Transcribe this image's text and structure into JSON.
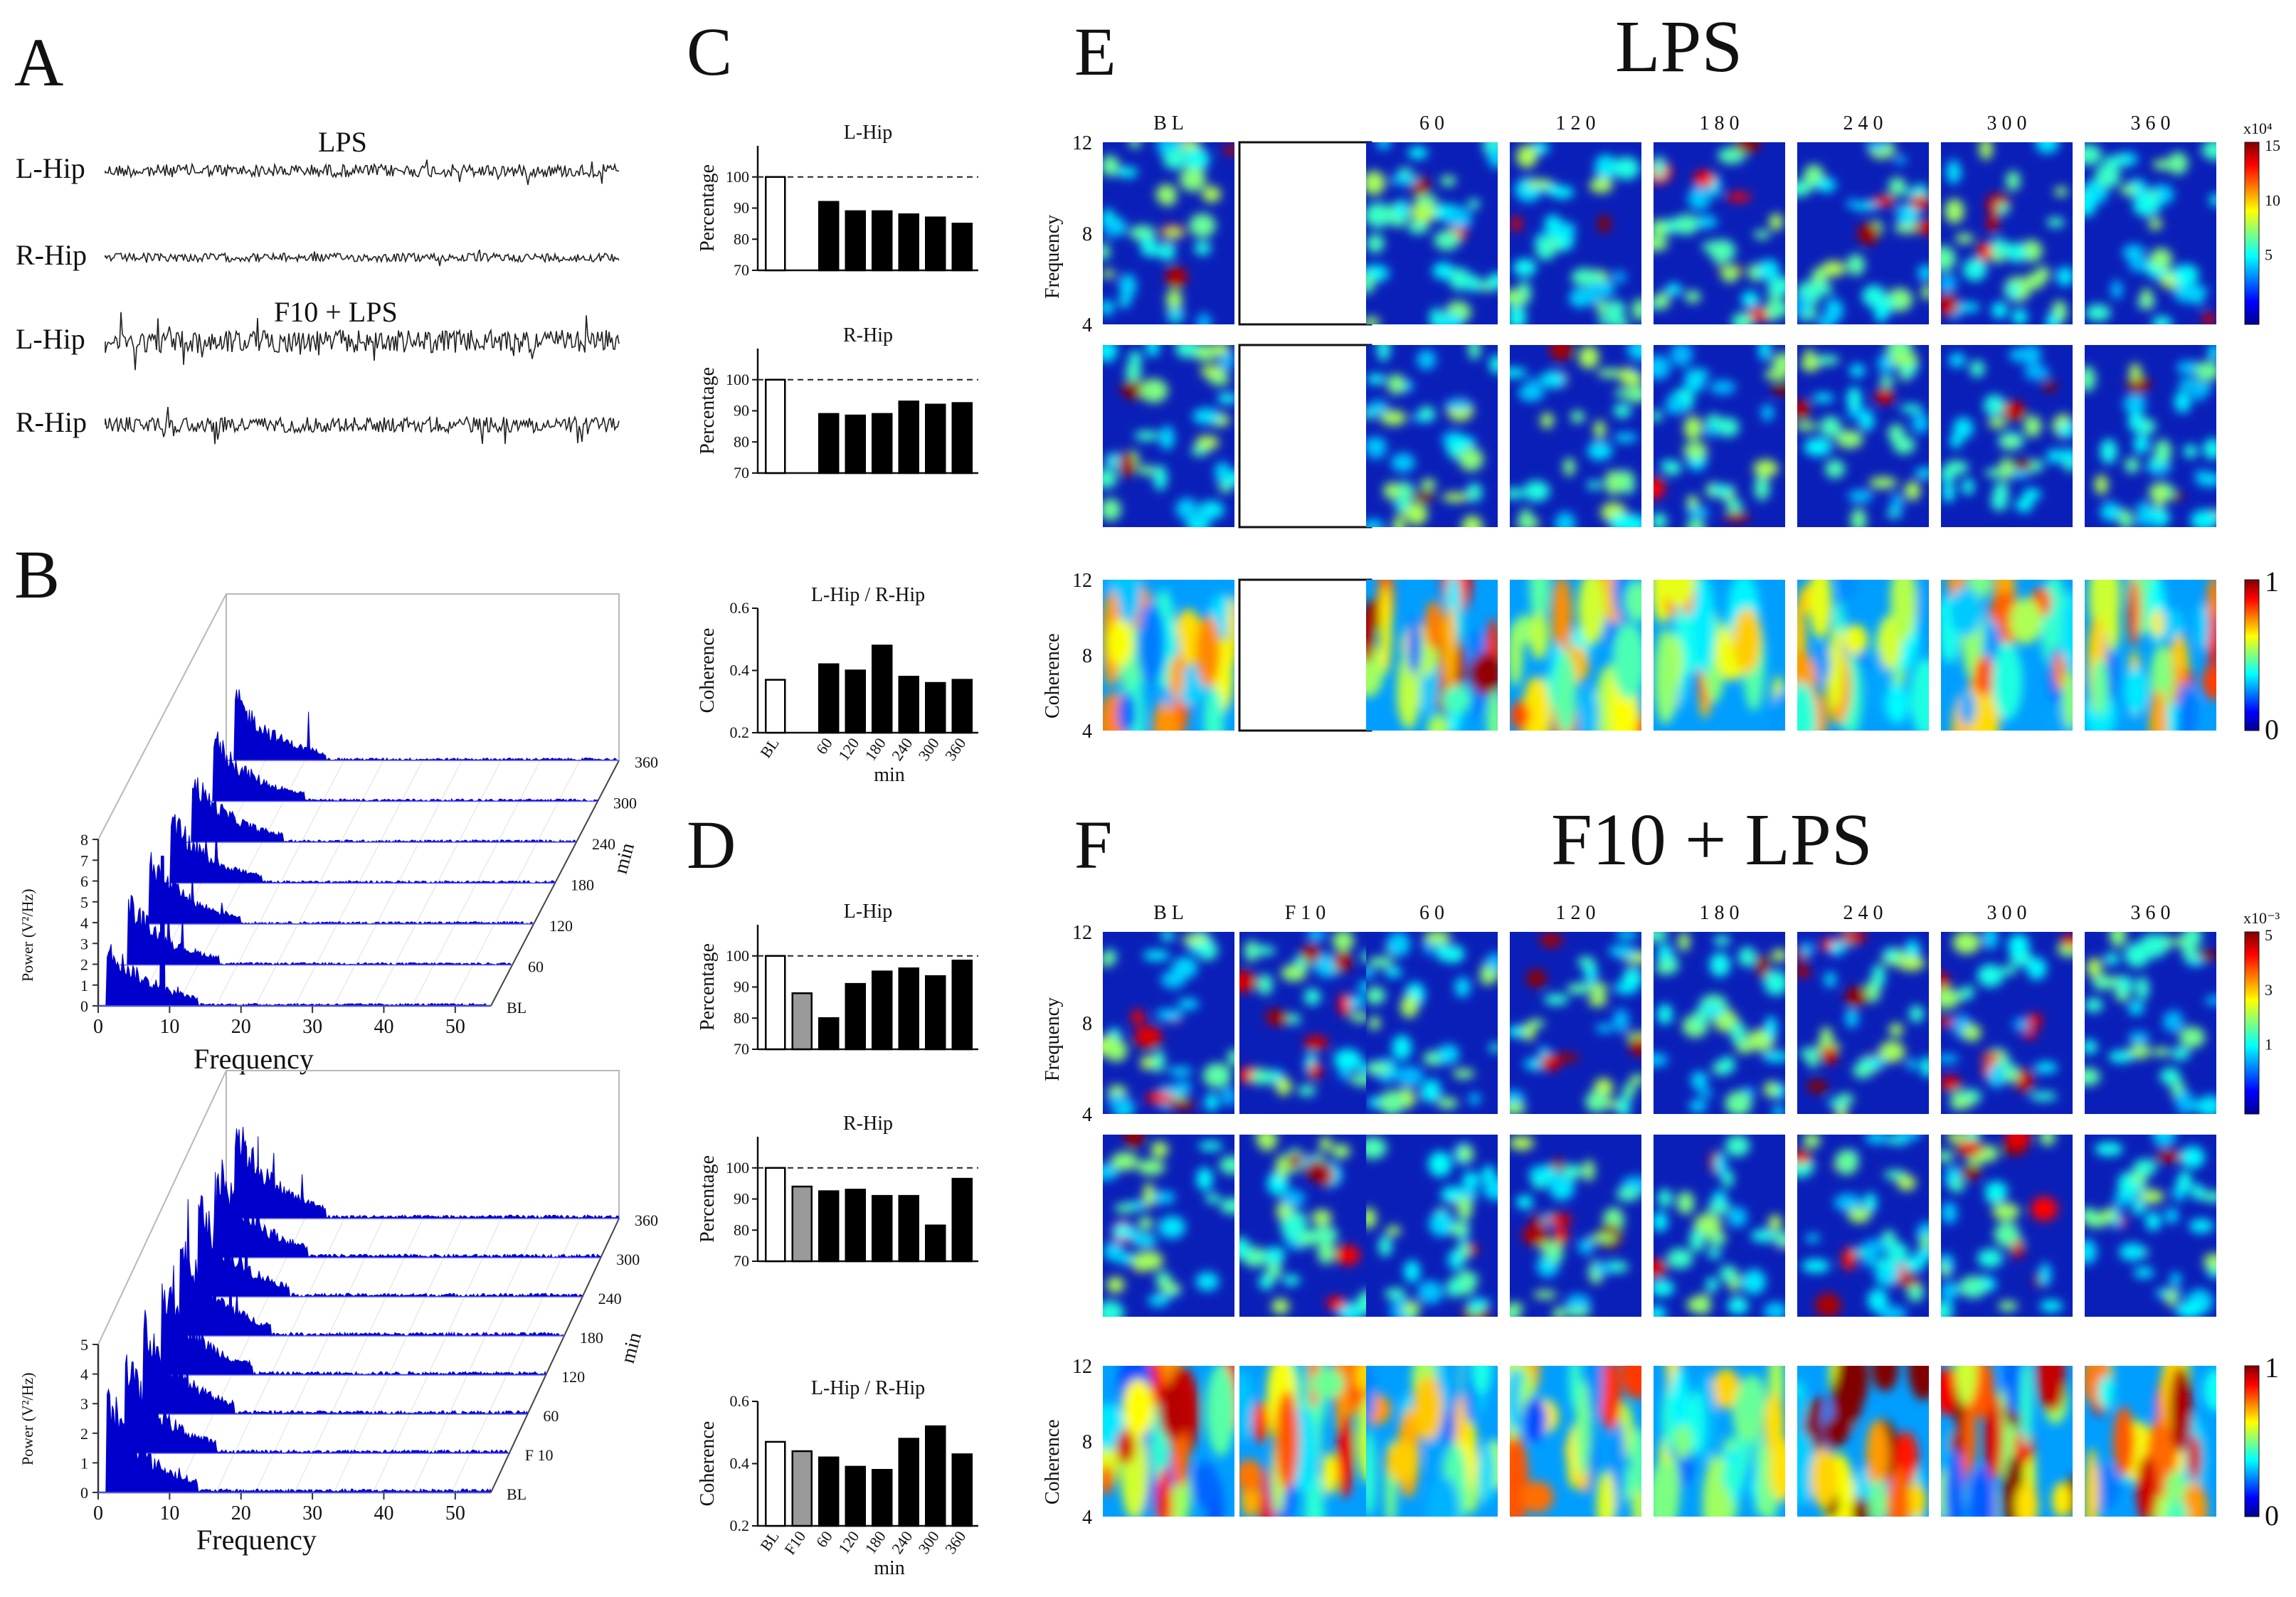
{
  "panels": {
    "a": "A",
    "b": "B",
    "c": "C",
    "d": "D",
    "e": "E",
    "f": "F"
  },
  "panel_a": {
    "cond1": "LPS",
    "cond2": "F10 + LPS",
    "row_labels": [
      "L-Hip",
      "R-Hip",
      "L-Hip",
      "R-Hip"
    ]
  },
  "panel_b": {
    "xlabel": "Frequency",
    "zlabel": "min",
    "xticks": [
      "0",
      "10",
      "20",
      "30",
      "40",
      "50"
    ],
    "top": {
      "ylabel": "Power (V²/Hz)",
      "yticks": [
        "0",
        "1",
        "2",
        "3",
        "4",
        "5",
        "6",
        "7",
        "8"
      ],
      "time_labels": [
        "BL",
        "60",
        "120",
        "180",
        "240",
        "300",
        "360"
      ]
    },
    "bottom": {
      "ylabel": "Power (V²/Hz)",
      "yticks": [
        "0",
        "1",
        "2",
        "3",
        "4",
        "5"
      ],
      "time_labels": [
        "BL",
        "F 10",
        "60",
        "120",
        "180",
        "240",
        "300",
        "360"
      ]
    }
  },
  "panel_e": {
    "title": "LPS",
    "cols": [
      "B L",
      "",
      "6 0",
      "1 2 0",
      "1 8 0",
      "2 4 0",
      "3 0 0",
      "3 6 0"
    ],
    "ylabel_freq": "Frequency",
    "ylabel_coh": "Coherence",
    "yticks": [
      "12",
      "8",
      "4"
    ],
    "cbar1": {
      "exp": "x10⁴",
      "ticks": [
        "15",
        "10",
        "5"
      ]
    },
    "cbar2": {
      "ticks": [
        "1",
        "0"
      ]
    }
  },
  "panel_f": {
    "title": "F10 + LPS",
    "cols": [
      "B L",
      "F 1 0",
      "6 0",
      "1 2 0",
      "1 8 0",
      "2 4 0",
      "3 0 0",
      "3 6 0"
    ],
    "ylabel_freq": "Frequency",
    "ylabel_coh": "Coherence",
    "yticks": [
      "12",
      "8",
      "4"
    ],
    "cbar1": {
      "exp": "x10⁻³",
      "ticks": [
        "5",
        "3",
        "1"
      ]
    },
    "cbar2": {
      "ticks": [
        "1",
        "0"
      ]
    }
  },
  "chart_data": [
    {
      "id": "C1",
      "type": "bar",
      "title": "L-Hip",
      "ylabel": "Percentage",
      "ylim": [
        70,
        110
      ],
      "yticks": [
        "70",
        "80",
        "90",
        "100"
      ],
      "reference_line": 100,
      "categories": [
        "BL",
        "",
        "60",
        "120",
        "180",
        "240",
        "300",
        "360"
      ],
      "values": [
        100,
        null,
        92,
        89,
        89,
        88,
        87,
        85
      ],
      "styles": [
        "open",
        "gap",
        "black",
        "black",
        "black",
        "black",
        "black",
        "black"
      ]
    },
    {
      "id": "C2",
      "type": "bar",
      "title": "R-Hip",
      "ylabel": "Percentage",
      "ylim": [
        70,
        110
      ],
      "yticks": [
        "70",
        "80",
        "90",
        "100"
      ],
      "reference_line": 100,
      "categories": [
        "BL",
        "",
        "60",
        "120",
        "180",
        "240",
        "300",
        "360"
      ],
      "values": [
        100,
        null,
        89,
        88.5,
        89,
        93,
        92,
        92.5
      ],
      "styles": [
        "open",
        "gap",
        "black",
        "black",
        "black",
        "black",
        "black",
        "black"
      ]
    },
    {
      "id": "C3",
      "type": "bar",
      "title": "L-Hip / R-Hip",
      "ylabel": "Coherence",
      "xlabel": "min",
      "ylim": [
        0.2,
        0.6
      ],
      "yticks": [
        "0.2",
        "0.4",
        "0.6"
      ],
      "categories": [
        "BL",
        "",
        "60",
        "120",
        "180",
        "240",
        "300",
        "360"
      ],
      "values": [
        0.37,
        null,
        0.42,
        0.4,
        0.48,
        0.38,
        0.36,
        0.37
      ],
      "styles": [
        "open",
        "gap",
        "black",
        "black",
        "black",
        "black",
        "black",
        "black"
      ],
      "show_xticks": true
    },
    {
      "id": "D1",
      "type": "bar",
      "title": "L-Hip",
      "ylabel": "Percentage",
      "ylim": [
        70,
        110
      ],
      "yticks": [
        "70",
        "80",
        "90",
        "100"
      ],
      "reference_line": 100,
      "categories": [
        "BL",
        "F10",
        "60",
        "120",
        "180",
        "240",
        "300",
        "360"
      ],
      "values": [
        100,
        88,
        80,
        91,
        95,
        96,
        93.5,
        98.5
      ],
      "styles": [
        "open",
        "gray",
        "black",
        "black",
        "black",
        "black",
        "black",
        "black"
      ]
    },
    {
      "id": "D2",
      "type": "bar",
      "title": "R-Hip",
      "ylabel": "Percentage",
      "ylim": [
        70,
        110
      ],
      "yticks": [
        "70",
        "80",
        "90",
        "100"
      ],
      "reference_line": 100,
      "categories": [
        "BL",
        "F10",
        "60",
        "120",
        "180",
        "240",
        "300",
        "360"
      ],
      "values": [
        100,
        94,
        92.5,
        93,
        91,
        91,
        81.5,
        96.5
      ],
      "styles": [
        "open",
        "gray",
        "black",
        "black",
        "black",
        "black",
        "black",
        "black"
      ]
    },
    {
      "id": "D3",
      "type": "bar",
      "title": "L-Hip / R-Hip",
      "ylabel": "Coherence",
      "xlabel": "min",
      "ylim": [
        0.2,
        0.6
      ],
      "yticks": [
        "0.2",
        "0.4",
        "0.6"
      ],
      "categories": [
        "BL",
        "F10",
        "60",
        "120",
        "180",
        "240",
        "300",
        "360"
      ],
      "values": [
        0.47,
        0.44,
        0.42,
        0.39,
        0.38,
        0.48,
        0.52,
        0.43
      ],
      "styles": [
        "open",
        "gray",
        "black",
        "black",
        "black",
        "black",
        "black",
        "black"
      ],
      "show_xticks": true
    }
  ],
  "colors": {
    "spectrum": "#0000cc",
    "bar_black": "#000000",
    "bar_gray": "#9a9a9a",
    "jet_bg": "#00008f"
  }
}
